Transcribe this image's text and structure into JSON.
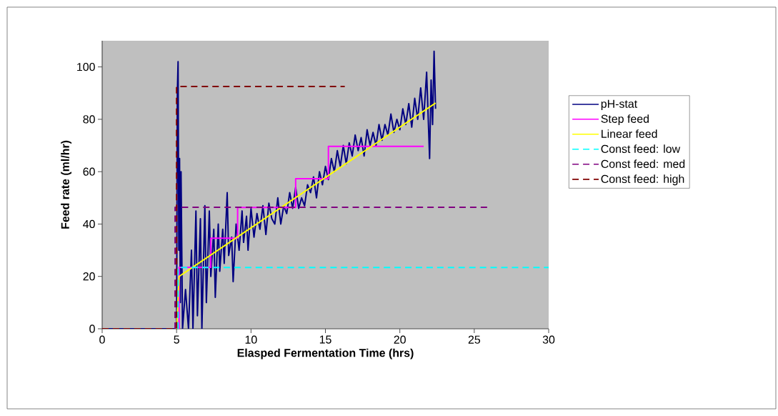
{
  "chart_data": {
    "type": "line",
    "xlabel": "Elasped Fermentation Time (hrs)",
    "ylabel": "Feed rate (ml/hr)",
    "xlim": [
      0,
      30
    ],
    "ylim": [
      0,
      110
    ],
    "xticks": [
      0,
      5,
      10,
      15,
      20,
      25,
      30
    ],
    "yticks": [
      0,
      20,
      40,
      60,
      80,
      100
    ],
    "legend": "right",
    "line_style": "solid",
    "series": [
      {
        "name": "pH-stat",
        "color": "#000080",
        "x": [
          0,
          5.0,
          5.05,
          5.1,
          5.15,
          5.2,
          5.25,
          5.3,
          5.4,
          5.6,
          5.8,
          6.0,
          6.1,
          6.3,
          6.4,
          6.6,
          6.7,
          6.9,
          7.0,
          7.2,
          7.3,
          7.5,
          7.6,
          7.8,
          7.9,
          8.1,
          8.2,
          8.4,
          8.5,
          8.7,
          8.8,
          9.0,
          9.2,
          9.4,
          9.5,
          9.7,
          9.8,
          10.0,
          10.2,
          10.4,
          10.6,
          10.8,
          11.0,
          11.2,
          11.4,
          11.6,
          11.8,
          12.0,
          12.2,
          12.4,
          12.6,
          12.8,
          13.0,
          13.2,
          13.4,
          13.6,
          13.8,
          14.0,
          14.2,
          14.4,
          14.6,
          14.8,
          15.0,
          15.2,
          15.4,
          15.6,
          15.8,
          16.0,
          16.2,
          16.4,
          16.6,
          16.8,
          17.0,
          17.2,
          17.4,
          17.6,
          17.8,
          18.0,
          18.2,
          18.4,
          18.6,
          18.8,
          19.0,
          19.2,
          19.4,
          19.6,
          19.8,
          20.0,
          20.2,
          20.4,
          20.6,
          20.8,
          21.0,
          21.2,
          21.4,
          21.6,
          21.8,
          22.0,
          22.1,
          22.2,
          22.3,
          22.4
        ],
        "values": [
          0,
          0,
          90,
          102,
          30,
          65,
          10,
          60,
          0,
          15,
          0,
          30,
          0,
          45,
          5,
          42,
          0,
          47,
          10,
          45,
          20,
          38,
          12,
          40,
          22,
          38,
          25,
          52,
          28,
          35,
          18,
          40,
          30,
          45,
          33,
          43,
          30,
          46,
          35,
          44,
          38,
          47,
          36,
          48,
          42,
          40,
          50,
          40,
          47,
          44,
          52,
          46,
          54,
          46,
          50,
          47,
          55,
          52,
          58,
          50,
          60,
          55,
          62,
          57,
          65,
          60,
          68,
          62,
          70,
          63,
          71,
          66,
          74,
          68,
          73,
          66,
          76,
          70,
          75,
          70,
          78,
          72,
          78,
          74,
          82,
          75,
          80,
          76,
          84,
          78,
          86,
          77,
          88,
          80,
          92,
          80,
          98,
          65,
          95,
          78,
          106,
          84
        ]
      },
      {
        "name": "Step feed",
        "color": "#ff00ff",
        "x": [
          5.17,
          5.17,
          7.3,
          7.3,
          9.1,
          9.1,
          13.0,
          13.0,
          15.2,
          15.2,
          21.6
        ],
        "values": [
          0,
          23.5,
          23.5,
          34.6,
          34.6,
          46.3,
          46.3,
          57.3,
          57.3,
          69.7,
          69.7
        ]
      },
      {
        "name": "Linear feed",
        "color": "#ffff00",
        "x": [
          5.0,
          5.17,
          22.4
        ],
        "values": [
          0,
          20,
          86.2
        ]
      },
      {
        "name": "Const feed: low",
        "color": "#00ffff",
        "line_style": "dashed",
        "x": [
          5.1,
          5.1,
          30
        ],
        "values": [
          0,
          23.4,
          23.4
        ]
      },
      {
        "name": "Const feed: med",
        "color": "#800080",
        "line_style": "dashed",
        "x": [
          4.9,
          4.9,
          25.9
        ],
        "values": [
          0,
          46.4,
          46.4
        ]
      },
      {
        "name": "Const feed: high",
        "color": "#800000",
        "line_style": "dashed",
        "x": [
          0,
          5.0,
          5.0,
          16.3
        ],
        "values": [
          0,
          0,
          92.5,
          92.5
        ]
      }
    ]
  }
}
